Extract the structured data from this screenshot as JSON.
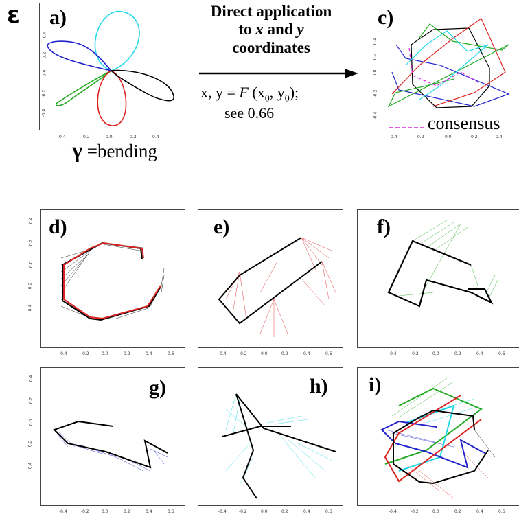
{
  "epsilon_mark": "ε",
  "panels": {
    "a": "a)",
    "c": "c)",
    "d": "d)",
    "e": "e)",
    "f": "f)",
    "g": "g)",
    "h": "h)",
    "i": "i)"
  },
  "arrow_text": {
    "line1": "Direct application",
    "line2_pre": "to ",
    "line2_x": "x",
    "line2_mid": " and ",
    "line2_y": "y",
    "line3": "coordinates"
  },
  "formula": {
    "lhs": "x, y = ",
    "F": "F",
    "args": " (x",
    "sub0a": "0",
    "comma": ", y",
    "sub0b": "0",
    "close": ");",
    "see": "see 0.66"
  },
  "gamma": {
    "symbol": "γ",
    "text": "=bending"
  },
  "consensus_label": "consensus",
  "ticks": {
    "top_x": [
      "0.4",
      "0.2",
      "0.0",
      "0.2",
      "0.4"
    ],
    "a_y": [
      "0.4",
      "0.2",
      "0.0",
      "-0.2",
      "-0.4"
    ],
    "c_y": [
      "0.4",
      "0.2",
      "0.0",
      "-0.2",
      "-0.4"
    ],
    "grid_x": [
      "-0.4",
      "-0.2",
      "0.0",
      "0.2",
      "0.4",
      "0.6"
    ],
    "grid_y": [
      "0.4",
      "0.2",
      "0.0",
      "-0.2",
      "-0.4"
    ]
  },
  "colors": {
    "cyan": "#22d8e8",
    "blue": "#2222cc",
    "green": "#22aa22",
    "red": "#dd2222",
    "black": "#000000",
    "magenta": "#dd22dd"
  }
}
